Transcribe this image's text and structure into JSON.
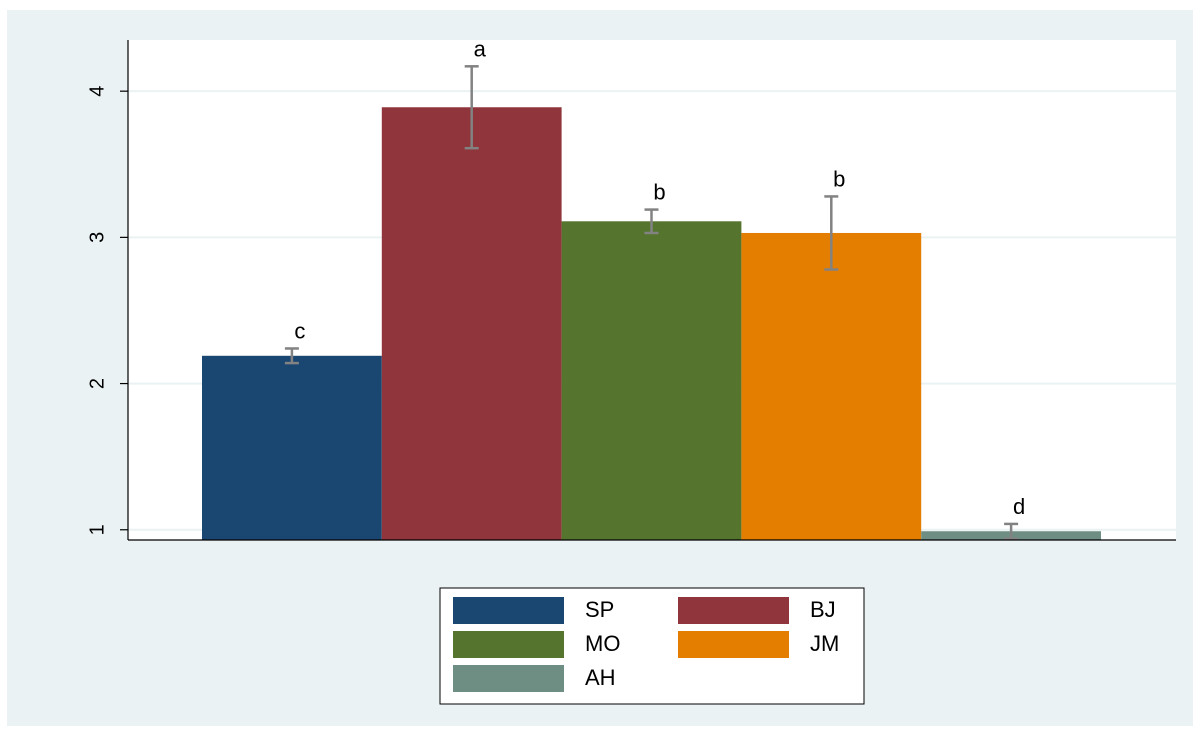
{
  "chart_data": {
    "type": "bar",
    "title": "",
    "xlabel": "",
    "ylabel": "",
    "ylim": [
      0.93,
      4.35
    ],
    "yticks": [
      1,
      2,
      3,
      4
    ],
    "grid": true,
    "legend_position": "bottom",
    "series": [
      {
        "name": "SP",
        "value": 2.19,
        "error": 0.05,
        "letter": "c",
        "color": "#1a4672"
      },
      {
        "name": "BJ",
        "value": 3.89,
        "error": 0.28,
        "letter": "a",
        "color": "#90353b"
      },
      {
        "name": "MO",
        "value": 3.11,
        "error": 0.08,
        "letter": "b",
        "color": "#55752f"
      },
      {
        "name": "JM",
        "value": 3.03,
        "error": 0.25,
        "letter": "b",
        "color": "#e37e00"
      },
      {
        "name": "AH",
        "value": 0.99,
        "error": 0.05,
        "letter": "d",
        "color": "#6e8e84"
      }
    ]
  },
  "colors": {
    "background": "#eaf2f3",
    "plot_background": "#ffffff",
    "gridline": "#eaf2f3",
    "error_bar": "#828282"
  }
}
